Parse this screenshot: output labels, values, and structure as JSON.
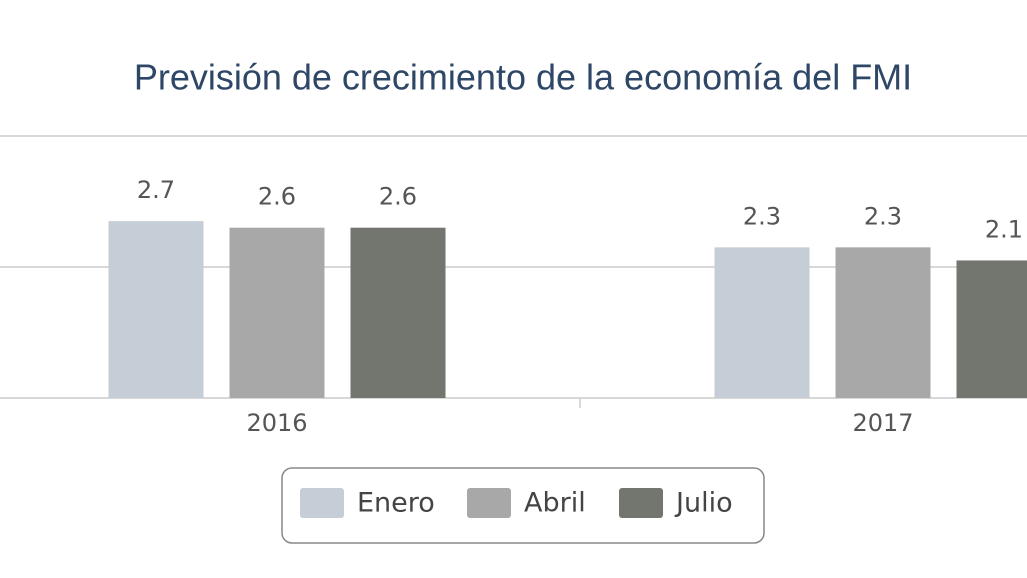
{
  "chart_data": {
    "type": "bar",
    "title": "Previsión de crecimiento de la economía del FMI",
    "categories": [
      "2016",
      "2017"
    ],
    "series": [
      {
        "name": "Enero",
        "color": "#c5ced6",
        "values": [
          2.7,
          2.3
        ]
      },
      {
        "name": "Abril",
        "color": "#a8a8a8",
        "values": [
          2.6,
          2.3
        ]
      },
      {
        "name": "Julio",
        "color": "#73756f",
        "values": [
          2.6,
          2.1
        ]
      }
    ],
    "ylim": [
      0,
      4
    ],
    "yticks": [
      0,
      2,
      4
    ],
    "grid": true
  }
}
